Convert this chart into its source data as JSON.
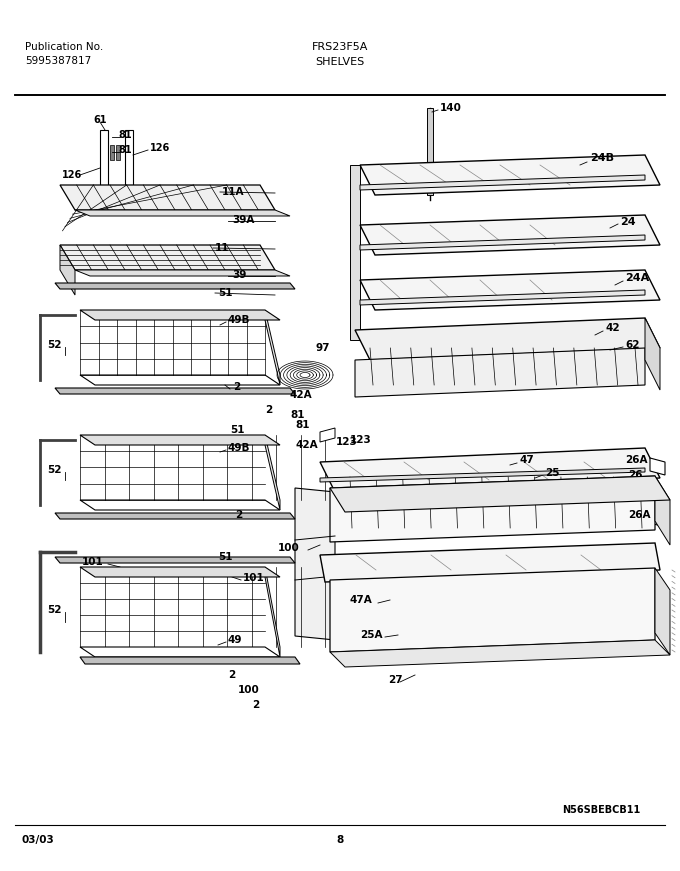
{
  "title": "FRS23F5A",
  "section": "SHELVES",
  "pub_label": "Publication No.",
  "pub_number": "5995387817",
  "date": "03/03",
  "page": "8",
  "watermark": "N56SBEBCB11",
  "bg_color": "#ffffff",
  "text_color": "#000000"
}
